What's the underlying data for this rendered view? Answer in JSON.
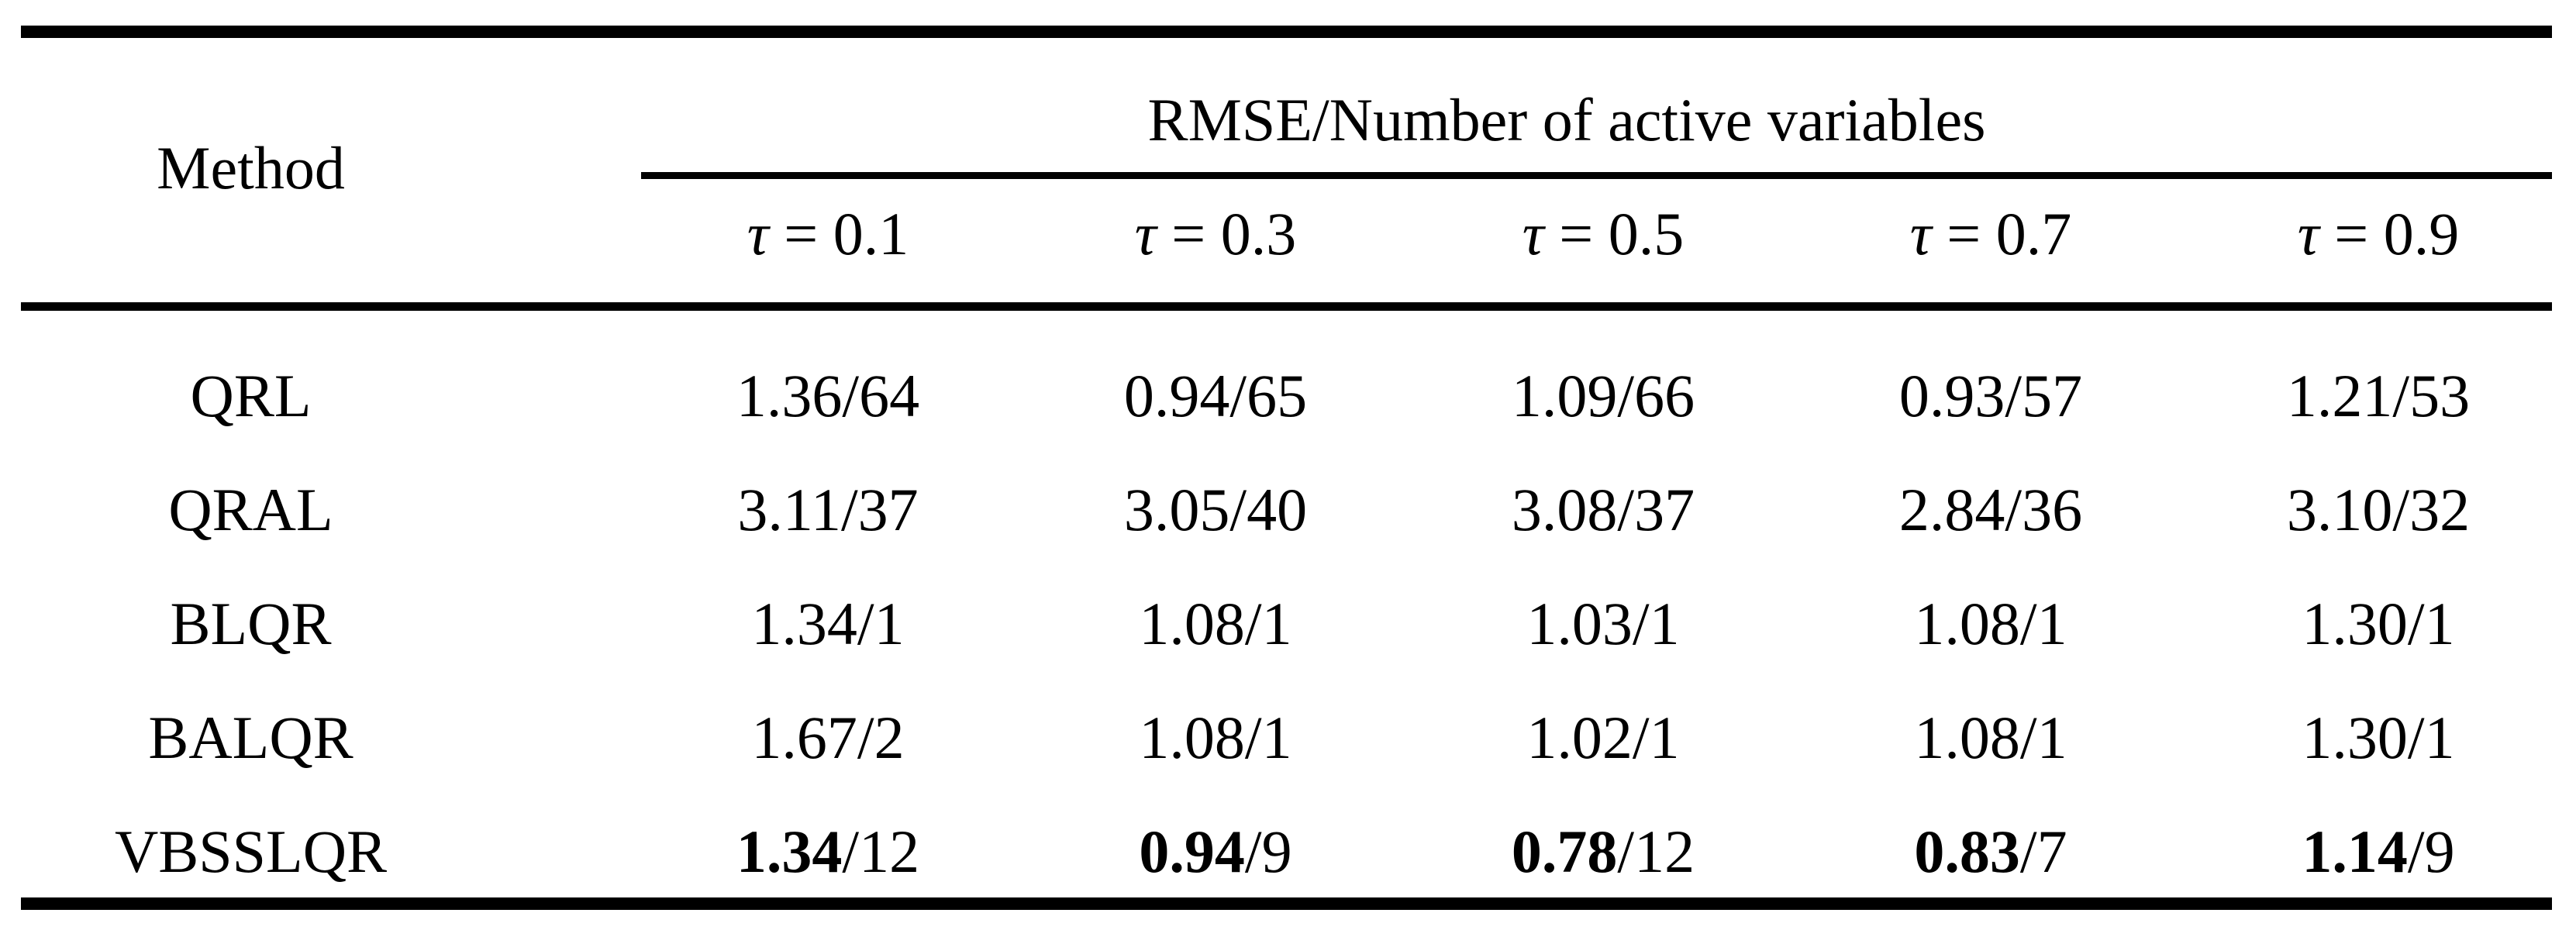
{
  "table": {
    "span_header": "RMSE/Number of active variables",
    "method_header": "Method",
    "tau_headers": [
      "τ = 0.1",
      "τ = 0.3",
      "τ = 0.5",
      "τ = 0.7",
      "τ = 0.9"
    ],
    "rows": [
      {
        "method": "QRL",
        "cells": [
          {
            "rmse": "1.36",
            "rest": "/64"
          },
          {
            "rmse": "0.94",
            "rest": "/65"
          },
          {
            "rmse": "1.09",
            "rest": "/66"
          },
          {
            "rmse": "0.93",
            "rest": "/57"
          },
          {
            "rmse": "1.21",
            "rest": "/53"
          }
        ]
      },
      {
        "method": "QRAL",
        "cells": [
          {
            "rmse": "3.11",
            "rest": "/37"
          },
          {
            "rmse": "3.05",
            "rest": "/40"
          },
          {
            "rmse": "3.08",
            "rest": "/37"
          },
          {
            "rmse": "2.84",
            "rest": "/36"
          },
          {
            "rmse": "3.10",
            "rest": "/32"
          }
        ]
      },
      {
        "method": "BLQR",
        "cells": [
          {
            "rmse": "1.34",
            "rest": "/1"
          },
          {
            "rmse": "1.08",
            "rest": "/1"
          },
          {
            "rmse": "1.03",
            "rest": "/1"
          },
          {
            "rmse": "1.08",
            "rest": "/1"
          },
          {
            "rmse": "1.30",
            "rest": "/1"
          }
        ]
      },
      {
        "method": "BALQR",
        "cells": [
          {
            "rmse": "1.67",
            "rest": "/2"
          },
          {
            "rmse": "1.08",
            "rest": "/1"
          },
          {
            "rmse": "1.02",
            "rest": "/1"
          },
          {
            "rmse": "1.08",
            "rest": "/1"
          },
          {
            "rmse": "1.30",
            "rest": "/1"
          }
        ]
      },
      {
        "method": "VBSSLQR",
        "cells": [
          {
            "rmse": "1.34",
            "rest": "/12"
          },
          {
            "rmse": "0.94",
            "rest": "/9"
          },
          {
            "rmse": "0.78",
            "rest": "/12"
          },
          {
            "rmse": "0.83",
            "rest": "/7"
          },
          {
            "rmse": "1.14",
            "rest": "/9"
          }
        ]
      }
    ]
  }
}
